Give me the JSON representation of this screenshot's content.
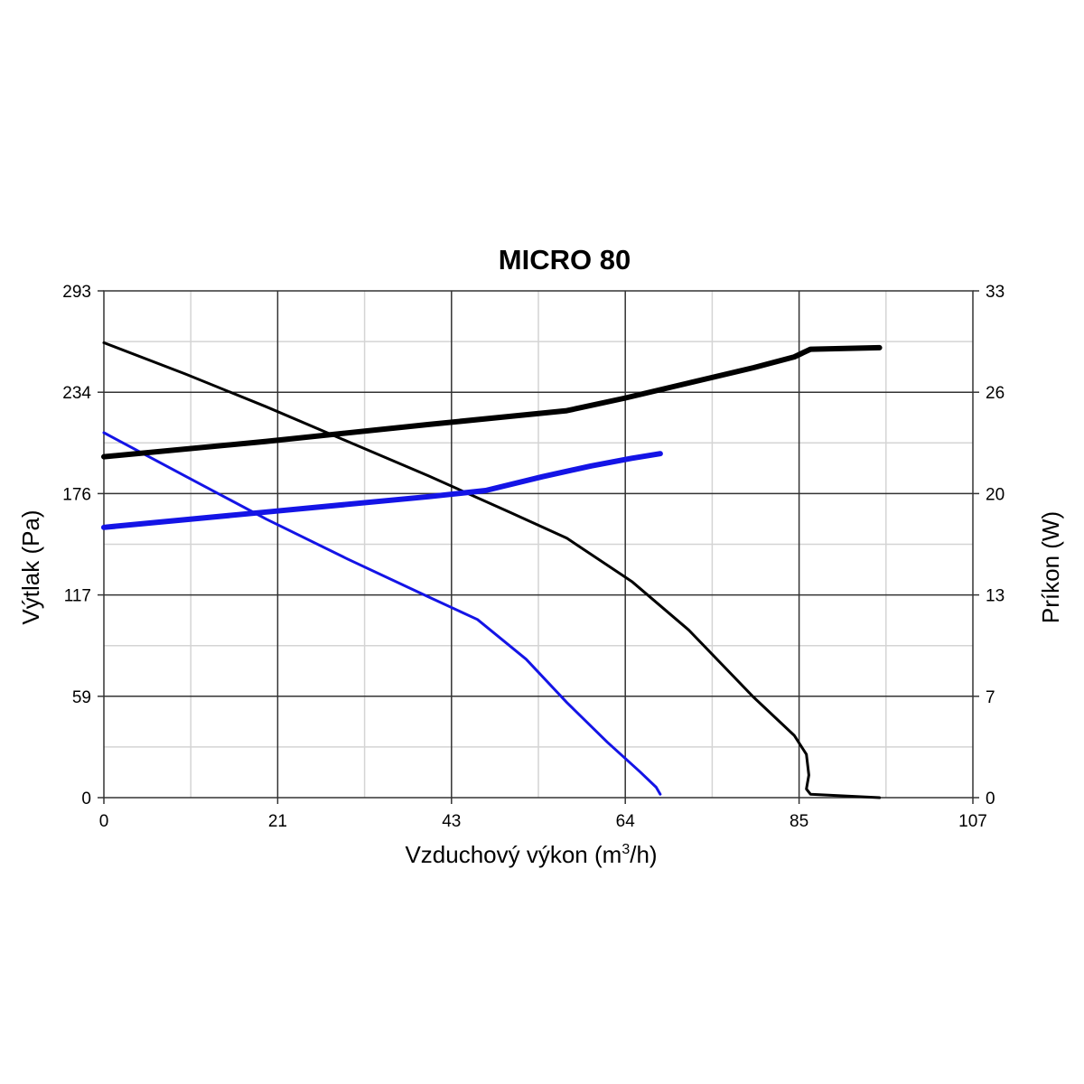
{
  "chart_data": {
    "type": "line",
    "title": "MICRO 80",
    "xlabel": "Vzduchový výkon (m³/h)",
    "ylabel": "Výtlak (Pa)",
    "y2label": "Príkon (W)",
    "xlim": [
      0,
      107
    ],
    "ylim": [
      0,
      293
    ],
    "y2lim": [
      0,
      33
    ],
    "xticks": [
      "0",
      "21",
      "43",
      "64",
      "85",
      "107"
    ],
    "yticks": [
      "0",
      "59",
      "117",
      "176",
      "234",
      "293"
    ],
    "y2ticks": [
      "0",
      "7",
      "13",
      "20",
      "26",
      "33"
    ],
    "grid": true,
    "colors": {
      "black": "#000000",
      "blue": "#1414e6",
      "major_grid": "#333333",
      "minor_grid": "#d4d4d4"
    },
    "series": [
      {
        "axis": "left",
        "color": "#000000",
        "weight": "thin",
        "x": [
          0,
          10,
          20,
          30,
          40,
          50,
          57,
          65,
          72,
          80,
          85,
          86.5,
          86.8,
          86.5,
          87,
          95.5
        ],
        "y": [
          263,
          245,
          226,
          206,
          186,
          165,
          150,
          125,
          97,
          58,
          36,
          25,
          13,
          5,
          2,
          0
        ]
      },
      {
        "axis": "left",
        "color": "#1414e6",
        "weight": "thin",
        "x": [
          0,
          10,
          20,
          30,
          40,
          46,
          52,
          57,
          62,
          66,
          68,
          68.5
        ],
        "y": [
          211,
          186,
          161,
          138,
          116,
          103,
          80,
          55,
          32,
          15,
          6,
          2
        ]
      },
      {
        "axis": "right",
        "color": "#000000",
        "weight": "thick",
        "x": [
          0,
          20,
          40,
          57,
          64,
          72,
          80,
          85,
          87,
          95.5
        ],
        "y": [
          22.2,
          23.2,
          24.3,
          25.2,
          26,
          27,
          28,
          28.7,
          29.2,
          29.3
        ]
      },
      {
        "axis": "right",
        "color": "#1414e6",
        "weight": "thick",
        "x": [
          0,
          20,
          40,
          47,
          54,
          60,
          65,
          68.5
        ],
        "y": [
          17.6,
          18.6,
          19.6,
          20,
          20.9,
          21.6,
          22.1,
          22.4
        ]
      }
    ]
  }
}
